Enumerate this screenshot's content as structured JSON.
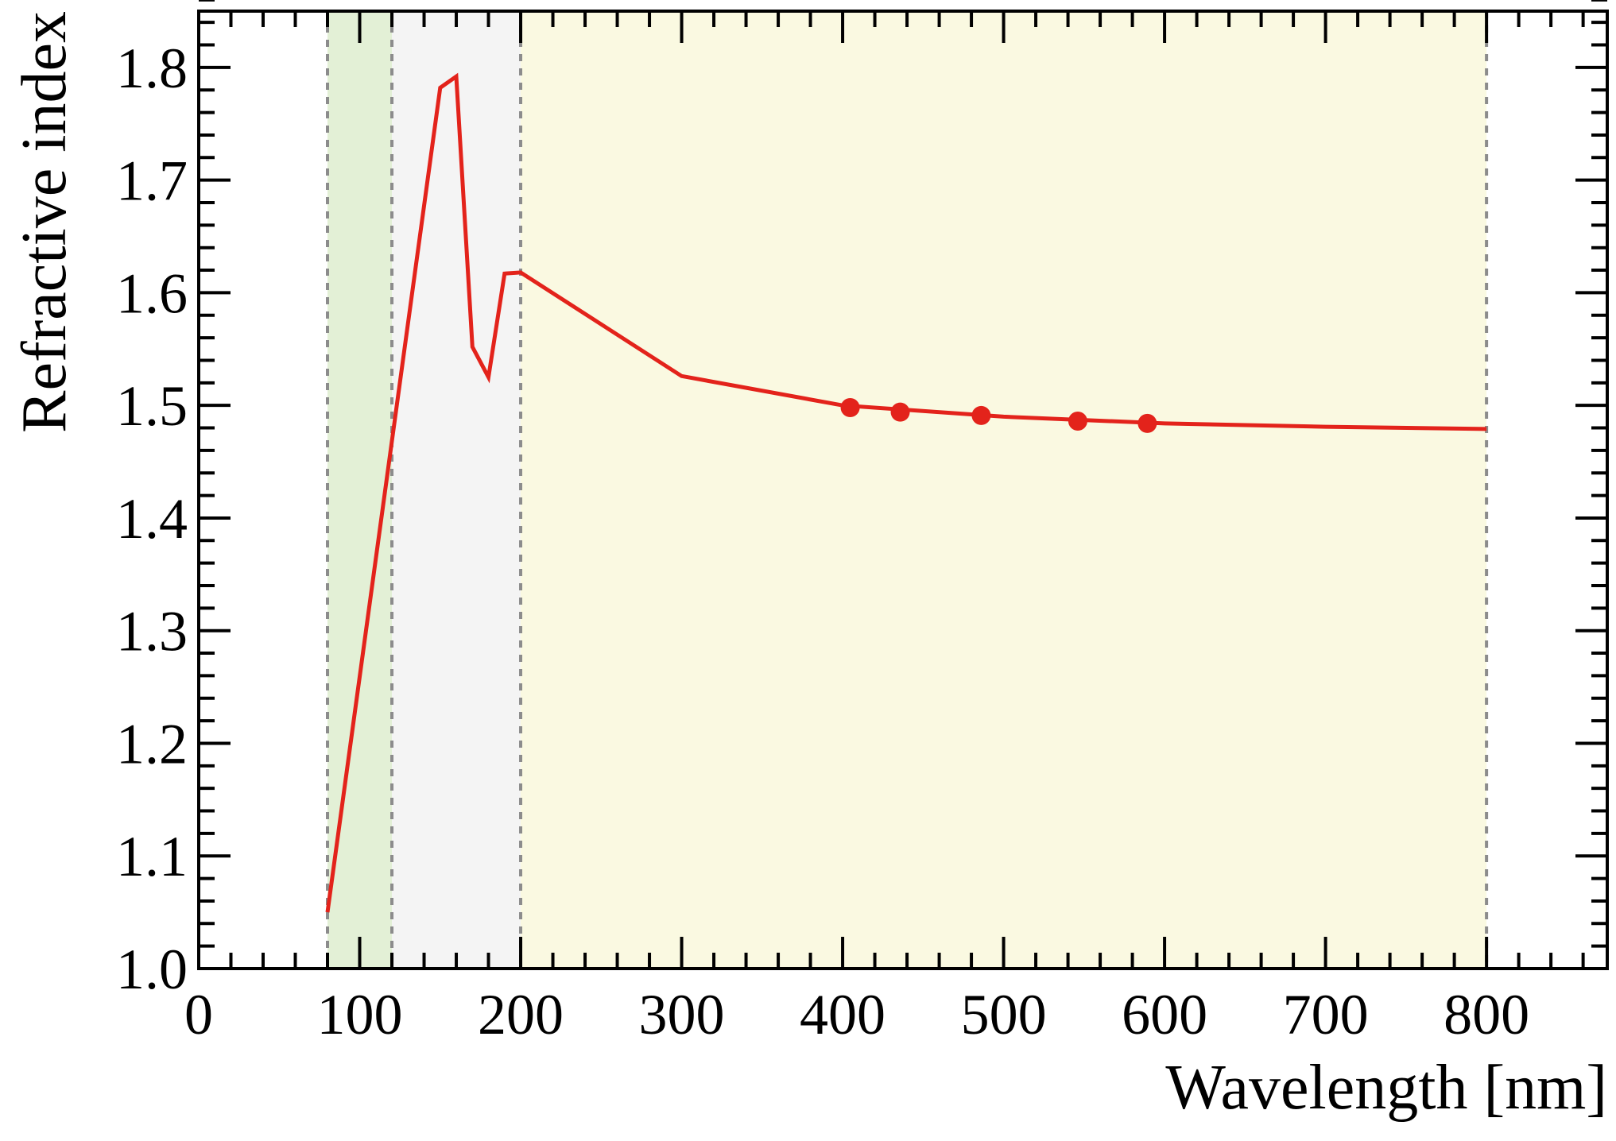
{
  "chart_data": {
    "type": "line",
    "xlabel": "Wavelength [nm]",
    "ylabel": "Refractive index",
    "xlim": [
      0,
      875
    ],
    "ylim": [
      1.0,
      1.85
    ],
    "x_ticks": [
      0,
      100,
      200,
      300,
      400,
      500,
      600,
      700,
      800
    ],
    "x_tick_labels": [
      "0",
      "100",
      "200",
      "300",
      "400",
      "500",
      "600",
      "700",
      "800"
    ],
    "y_ticks": [
      1.0,
      1.1,
      1.2,
      1.3,
      1.4,
      1.5,
      1.6,
      1.7,
      1.8
    ],
    "y_tick_labels": [
      "1.0",
      "1.1",
      "1.2",
      "1.3",
      "1.4",
      "1.5",
      "1.6",
      "1.7",
      "1.8"
    ],
    "grid": false,
    "shaded_regions": [
      {
        "x_start": 80,
        "x_end": 120,
        "color": "#e3f0d6"
      },
      {
        "x_start": 120,
        "x_end": 200,
        "color": "#f4f4f4"
      },
      {
        "x_start": 200,
        "x_end": 800,
        "color": "#faf9e1"
      }
    ],
    "vertical_lines": [
      80,
      120,
      200,
      800
    ],
    "series": [
      {
        "style": "line",
        "color": "#e3231b",
        "x": [
          80,
          150,
          160,
          170,
          180,
          190,
          200,
          300,
          400,
          500,
          600,
          700,
          800
        ],
        "y": [
          1.05,
          1.782,
          1.792,
          1.552,
          1.525,
          1.617,
          1.618,
          1.526,
          1.5,
          1.49,
          1.484,
          1.481,
          1.479
        ]
      },
      {
        "style": "markers",
        "color": "#e3231b",
        "x": [
          404.7,
          435.8,
          486.1,
          546.1,
          589.3
        ],
        "y": [
          1.498,
          1.494,
          1.491,
          1.486,
          1.484
        ]
      }
    ]
  }
}
